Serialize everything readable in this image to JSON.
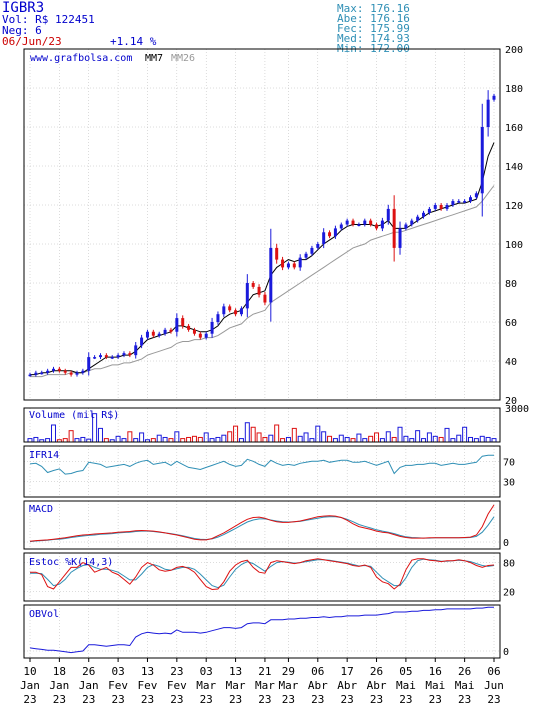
{
  "header": {
    "ticker": "IGBR3",
    "volume_label": "Vol: R$",
    "volume": "122451",
    "trades_label": "Neg:",
    "trades": "6",
    "date": "06/Jun/23",
    "change": "+1.14 %"
  },
  "quote": [
    {
      "label": "Max:",
      "value": "176.16"
    },
    {
      "label": "Abe:",
      "value": "176.16"
    },
    {
      "label": "Fec:",
      "value": "175.99"
    },
    {
      "label": "Med:",
      "value": "174.93"
    },
    {
      "label": "Min:",
      "value": "172.00"
    }
  ],
  "colors": {
    "up": "#1a1adb",
    "down": "#dd1111",
    "mm7": "#000000",
    "mm26": "#999999",
    "ifr": "#2f8fb5",
    "macd": "#dd1111",
    "signal": "#2f8fb5",
    "stoch_k": "#dd1111",
    "stoch_d": "#2f8fb5",
    "obv": "#1a1adb",
    "panel_label": "#0000cc",
    "grid": "#b8b8b8"
  },
  "chart_data": [
    {
      "type": "candlestick",
      "title": "www.grafbolsa.com",
      "legend": [
        "MM7",
        "MM26"
      ],
      "ylim": [
        20,
        200
      ],
      "yticks": [
        20,
        40,
        60,
        80,
        100,
        120,
        140,
        160,
        180,
        200
      ],
      "x_tick_days": [
        "10",
        "18",
        "26",
        "03",
        "13",
        "23",
        "03",
        "13",
        "21",
        "29",
        "06",
        "17",
        "26",
        "05",
        "16",
        "26",
        "06"
      ],
      "x_tick_months": [
        "Jan",
        "Jan",
        "Jan",
        "Fev",
        "Fev",
        "Fev",
        "Mar",
        "Mar",
        "Mar",
        "Mar",
        "Abr",
        "Abr",
        "Abr",
        "Mai",
        "Mai",
        "Mai",
        "Jun"
      ],
      "x_tick_years": [
        "23",
        "23",
        "23",
        "23",
        "23",
        "23",
        "23",
        "23",
        "23",
        "23",
        "23",
        "23",
        "23",
        "23",
        "23",
        "23",
        "23"
      ],
      "close": [
        33,
        34,
        34,
        35,
        36,
        35,
        34,
        33,
        34,
        35,
        42,
        42,
        43,
        42,
        42,
        43,
        44,
        43,
        48,
        52,
        55,
        53,
        54,
        56,
        55,
        62,
        58,
        56,
        54,
        52,
        54,
        60,
        64,
        68,
        66,
        64,
        67,
        80,
        78,
        74,
        70,
        98,
        92,
        88,
        90,
        88,
        93,
        95,
        98,
        100,
        106,
        104,
        108,
        110,
        112,
        110,
        110,
        112,
        110,
        108,
        112,
        118,
        98,
        108,
        110,
        112,
        114,
        116,
        118,
        120,
        118,
        120,
        122,
        122,
        122,
        124,
        126,
        160,
        174,
        176
      ],
      "mm7": [
        33,
        33,
        34,
        34,
        35,
        35,
        35,
        35,
        34,
        34,
        36,
        38,
        40,
        42,
        42,
        42,
        43,
        43,
        45,
        48,
        51,
        52,
        53,
        54,
        55,
        58,
        58,
        57,
        56,
        55,
        55,
        56,
        58,
        62,
        64,
        65,
        66,
        70,
        74,
        75,
        76,
        84,
        88,
        90,
        92,
        91,
        92,
        92,
        94,
        97,
        100,
        102,
        104,
        107,
        109,
        110,
        110,
        110,
        110,
        109,
        110,
        112,
        108,
        108,
        108,
        110,
        112,
        114,
        116,
        117,
        118,
        119,
        120,
        121,
        121,
        122,
        123,
        132,
        145,
        152
      ],
      "mm26": [
        32,
        32,
        32,
        33,
        33,
        33,
        33,
        34,
        34,
        34,
        35,
        36,
        36,
        37,
        38,
        38,
        39,
        39,
        40,
        41,
        43,
        44,
        45,
        46,
        47,
        49,
        50,
        50,
        51,
        51,
        52,
        52,
        53,
        55,
        57,
        58,
        59,
        62,
        64,
        65,
        66,
        70,
        72,
        74,
        76,
        78,
        80,
        82,
        84,
        86,
        88,
        90,
        92,
        94,
        96,
        98,
        99,
        100,
        102,
        103,
        104,
        105,
        106,
        106,
        107,
        108,
        109,
        110,
        111,
        112,
        113,
        114,
        115,
        116,
        117,
        118,
        119,
        122,
        126,
        130
      ]
    },
    {
      "type": "bar",
      "title": "Volume (mil R$)",
      "ylim": [
        0,
        3000
      ],
      "yticks": [
        3000
      ],
      "values": [
        300,
        400,
        200,
        300,
        1500,
        200,
        300,
        1000,
        300,
        400,
        250,
        2500,
        1200,
        300,
        200,
        500,
        300,
        900,
        300,
        800,
        200,
        300,
        600,
        400,
        300,
        900,
        300,
        400,
        500,
        400,
        800,
        300,
        400,
        600,
        900,
        1400,
        300,
        1700,
        1300,
        800,
        400,
        600,
        1500,
        300,
        400,
        1200,
        500,
        800,
        300,
        1400,
        900,
        500,
        300,
        600,
        400,
        300,
        700,
        300,
        500,
        800,
        300,
        900,
        400,
        1300,
        500,
        300,
        1000,
        300,
        800,
        500,
        400,
        1200,
        300,
        600,
        1300,
        400,
        300,
        500,
        400,
        300
      ]
    },
    {
      "type": "line",
      "title": "IFR14",
      "ylim": [
        0,
        100
      ],
      "yticks": [
        70,
        30
      ],
      "values": [
        65,
        66,
        60,
        48,
        52,
        55,
        45,
        46,
        50,
        52,
        68,
        66,
        64,
        58,
        60,
        62,
        64,
        60,
        66,
        70,
        72,
        64,
        66,
        68,
        62,
        70,
        64,
        58,
        56,
        54,
        58,
        62,
        66,
        70,
        64,
        60,
        62,
        74,
        70,
        64,
        60,
        72,
        66,
        62,
        64,
        62,
        66,
        68,
        70,
        70,
        72,
        68,
        70,
        72,
        72,
        68,
        68,
        70,
        66,
        62,
        66,
        70,
        46,
        58,
        62,
        62,
        64,
        64,
        66,
        66,
        62,
        64,
        66,
        64,
        64,
        66,
        68,
        80,
        82,
        82
      ]
    },
    {
      "type": "line",
      "title": "MACD",
      "yticks": [
        0
      ],
      "series": [
        {
          "values": [
            0.2,
            0.4,
            0.5,
            0.6,
            0.8,
            1,
            1.2,
            1.5,
            1.8,
            2,
            2.1,
            2.3,
            2.4,
            2.5,
            2.6,
            2.8,
            2.9,
            3,
            3.2,
            3.3,
            3.2,
            3.1,
            2.9,
            2.6,
            2.3,
            2,
            1.6,
            1.2,
            0.8,
            0.6,
            0.6,
            1,
            1.8,
            2.6,
            3.6,
            4.6,
            5.6,
            6.5,
            7,
            7.1,
            6.8,
            6.2,
            5.8,
            5.6,
            5.6,
            5.8,
            6,
            6.4,
            6.8,
            7.2,
            7.4,
            7.5,
            7.4,
            7,
            6.2,
            5.2,
            4.4,
            4,
            3.6,
            3.1,
            2.8,
            2.6,
            2.1,
            1.6,
            1.3,
            1.1,
            1.1,
            1.1,
            1.2,
            1.2,
            1.2,
            1.2,
            1.2,
            1.2,
            1.3,
            1.4,
            2,
            4.4,
            8,
            10.6
          ]
        },
        {
          "values": [
            0.1,
            0.3,
            0.4,
            0.5,
            0.7,
            0.8,
            1,
            1.3,
            1.5,
            1.7,
            1.9,
            2,
            2.2,
            2.3,
            2.4,
            2.6,
            2.7,
            2.8,
            3,
            3.1,
            3.1,
            3,
            2.8,
            2.6,
            2.4,
            2.1,
            1.8,
            1.4,
            1,
            0.8,
            0.7,
            0.9,
            1.4,
            2.1,
            3,
            3.9,
            4.8,
            5.7,
            6.3,
            6.6,
            6.6,
            6.3,
            6,
            5.8,
            5.7,
            5.8,
            5.9,
            6.2,
            6.5,
            6.8,
            7.1,
            7.2,
            7.2,
            7,
            6.5,
            5.8,
            5,
            4.5,
            4,
            3.5,
            3.1,
            2.8,
            2.4,
            1.9,
            1.5,
            1.3,
            1.2,
            1.1,
            1.1,
            1.2,
            1.2,
            1.2,
            1.2,
            1.2,
            1.2,
            1.3,
            1.6,
            2.8,
            4.8,
            7.2
          ]
        }
      ]
    },
    {
      "type": "line",
      "title": "Estoc %K(14,3)",
      "ylim": [
        0,
        100
      ],
      "yticks": [
        80,
        20
      ],
      "series": [
        {
          "values": [
            60,
            60,
            55,
            30,
            25,
            40,
            55,
            70,
            70,
            80,
            75,
            60,
            65,
            70,
            60,
            55,
            45,
            35,
            50,
            70,
            80,
            75,
            65,
            62,
            64,
            70,
            72,
            68,
            60,
            45,
            30,
            24,
            25,
            40,
            62,
            75,
            82,
            85,
            70,
            60,
            58,
            80,
            84,
            82,
            80,
            78,
            80,
            84,
            86,
            88,
            86,
            84,
            82,
            80,
            78,
            74,
            72,
            75,
            70,
            50,
            40,
            36,
            25,
            35,
            65,
            85,
            88,
            88,
            85,
            84,
            82,
            84,
            84,
            86,
            84,
            80,
            74,
            70,
            74,
            75
          ]
        },
        {
          "values": [
            58,
            58,
            57,
            45,
            32,
            35,
            45,
            60,
            68,
            74,
            76,
            70,
            66,
            66,
            64,
            60,
            52,
            44,
            44,
            56,
            70,
            76,
            72,
            66,
            64,
            67,
            70,
            70,
            66,
            56,
            44,
            32,
            28,
            33,
            50,
            66,
            76,
            82,
            78,
            70,
            62,
            72,
            80,
            82,
            81,
            79,
            80,
            82,
            84,
            86,
            86,
            85,
            83,
            81,
            79,
            76,
            73,
            74,
            72,
            60,
            48,
            40,
            32,
            32,
            48,
            70,
            84,
            87,
            86,
            85,
            83,
            83,
            84,
            85,
            84,
            82,
            78,
            74,
            72,
            74
          ]
        }
      ]
    },
    {
      "type": "line",
      "title": "OBVol",
      "yticks": [
        0
      ],
      "values": [
        4,
        3,
        2,
        1,
        1,
        0,
        -1,
        -2,
        -1,
        0,
        8,
        8,
        7,
        6,
        7,
        8,
        8,
        7,
        18,
        22,
        24,
        23,
        22,
        23,
        22,
        27,
        24,
        24,
        24,
        23,
        24,
        26,
        28,
        30,
        30,
        29,
        30,
        35,
        36,
        36,
        35,
        40,
        40,
        40,
        41,
        41,
        42,
        42,
        43,
        43,
        44,
        43,
        44,
        44,
        45,
        45,
        45,
        46,
        46,
        46,
        47,
        48,
        50,
        50,
        50,
        51,
        51,
        52,
        52,
        53,
        53,
        54,
        54,
        54,
        54,
        54,
        55,
        55,
        56,
        56
      ]
    }
  ]
}
